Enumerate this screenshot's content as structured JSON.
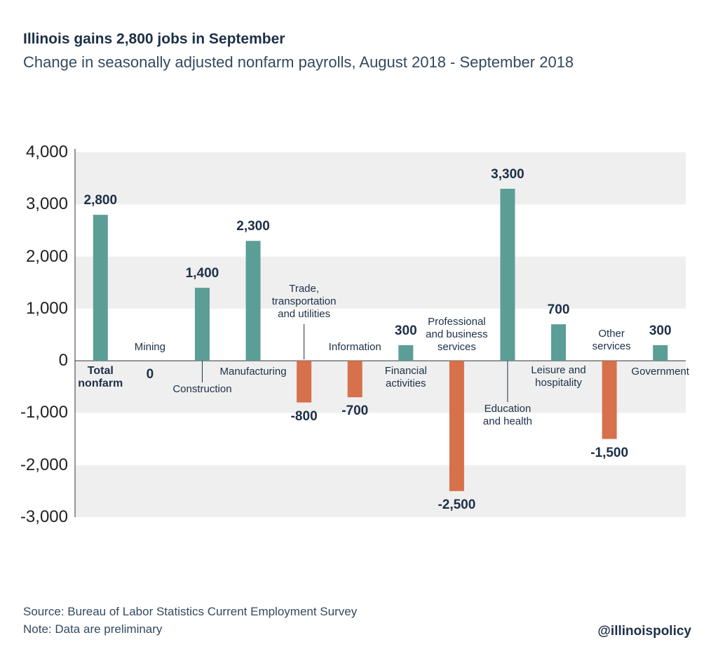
{
  "chart_data": {
    "type": "bar",
    "title": "Illinois gains 2,800 jobs in September",
    "subtitle": "Change in seasonally adjusted nonfarm payrolls, August 2018 - September 2018",
    "categories": [
      "Total\nnonfarm",
      "Mining",
      "Construction",
      "Manufacturing",
      "Trade,\ntransportation\nand utilities",
      "Information",
      "Financial\nactivities",
      "Professional\nand business\nservices",
      "Education\nand health",
      "Leisure and\nhospitality",
      "Other\nservices",
      "Government"
    ],
    "values": [
      2800,
      0,
      1400,
      2300,
      -800,
      -700,
      300,
      -2500,
      3300,
      700,
      -1500,
      300
    ],
    "value_labels": [
      "2,800",
      "0",
      "1,400",
      "2,300",
      "-800",
      "-700",
      "300",
      "-2,500",
      "3,300",
      "700",
      "-1,500",
      "300"
    ],
    "color": "#5b9e95",
    "negative_color": "#d6714c",
    "ylim": [
      -3000,
      4000
    ],
    "yticks": [
      {
        "value": -3000,
        "label": "-3,000"
      },
      {
        "value": -2000,
        "label": "-2,000"
      },
      {
        "value": -1000,
        "label": "-1,000"
      },
      0,
      {
        "value": 1000,
        "label": "1,000"
      },
      {
        "value": 2000,
        "label": "2,000"
      },
      {
        "value": 3000,
        "label": "3,000"
      },
      {
        "value": 4000,
        "label": "4,000"
      }
    ],
    "grid": true,
    "source": "Source: Bureau of Labor Statistics Current Employment Survey",
    "note": "Note: Data are preliminary",
    "credit": "@illinoispolicy"
  }
}
